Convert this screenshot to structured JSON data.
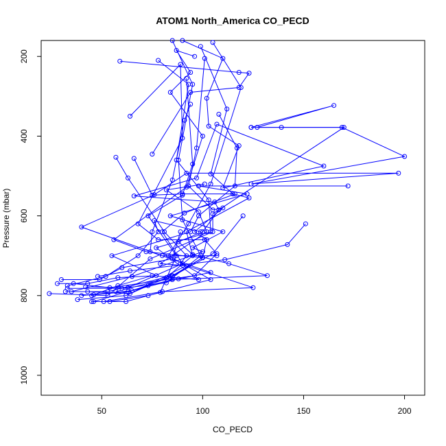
{
  "chart_data": {
    "type": "line",
    "title": "ATOM1 North_America CO_PECD",
    "xlabel": "CO_PECD",
    "ylabel": "Pressure (mbar)",
    "xlim": [
      20,
      210
    ],
    "ylim": [
      1050,
      160
    ],
    "y_inverted": true,
    "x_ticks": [
      50,
      100,
      150,
      200
    ],
    "y_ticks": [
      200,
      400,
      600,
      800,
      1000
    ],
    "grid": false,
    "legend": "none",
    "marker": "open-circle",
    "color": "#0000ff",
    "series": [
      {
        "points": [
          [
            59,
            212
          ],
          [
            118,
            240
          ],
          [
            123,
            242
          ],
          [
            118,
            278
          ],
          [
            94,
            290
          ],
          [
            75,
            445
          ]
        ]
      },
      {
        "points": [
          [
            124,
            378
          ],
          [
            165,
            323
          ],
          [
            127,
            378
          ],
          [
            169,
            378
          ],
          [
            200,
            451
          ],
          [
            124,
            520
          ],
          [
            197,
            493
          ],
          [
            92,
            493
          ],
          [
            76,
            547
          ],
          [
            40,
            628
          ],
          [
            80,
            700
          ],
          [
            107,
            700
          ]
        ]
      },
      {
        "points": [
          [
            90,
            160
          ],
          [
            110,
            205
          ],
          [
            102,
            305
          ],
          [
            103,
            375
          ],
          [
            118,
            424
          ],
          [
            110,
            530
          ],
          [
            160,
            475
          ],
          [
            107,
            370
          ],
          [
            97,
            505
          ],
          [
            66,
            550
          ],
          [
            106,
            565
          ],
          [
            108,
            585
          ],
          [
            100,
            640
          ],
          [
            88,
            665
          ],
          [
            95,
            697
          ],
          [
            113,
            720
          ],
          [
            132,
            750
          ],
          [
            85,
            760
          ],
          [
            73,
            775
          ],
          [
            46,
            815
          ]
        ]
      },
      {
        "points": [
          [
            57,
            453
          ],
          [
            63,
            505
          ],
          [
            81,
            640
          ],
          [
            92,
            700
          ],
          [
            89,
            720
          ],
          [
            125,
            780
          ],
          [
            80,
            790
          ],
          [
            51,
            815
          ]
        ]
      },
      {
        "points": [
          [
            101,
            205
          ],
          [
            97,
            430
          ],
          [
            93,
            525
          ],
          [
            105,
            585
          ],
          [
            110,
            580
          ],
          [
            96,
            640
          ],
          [
            102,
            660
          ],
          [
            100,
            705
          ],
          [
            85,
            750
          ],
          [
            53,
            790
          ],
          [
            32,
            790
          ]
        ]
      },
      {
        "points": [
          [
            124,
            378
          ],
          [
            139,
            378
          ],
          [
            170,
            378
          ],
          [
            105,
            595
          ],
          [
            105,
            640
          ],
          [
            74,
            708
          ],
          [
            53,
            800
          ],
          [
            24,
            795
          ]
        ]
      },
      {
        "points": [
          [
            99,
            175
          ],
          [
            112,
            332
          ],
          [
            104,
            495
          ],
          [
            115,
            545
          ],
          [
            123,
            555
          ],
          [
            92,
            640
          ],
          [
            95,
            700
          ],
          [
            82,
            755
          ],
          [
            62,
            800
          ],
          [
            38,
            810
          ]
        ]
      },
      {
        "points": [
          [
            151,
            620
          ],
          [
            142,
            672
          ],
          [
            111,
            710
          ],
          [
            64,
            738
          ],
          [
            48,
            752
          ]
        ]
      },
      {
        "points": [
          [
            96,
            200
          ],
          [
            87,
            185
          ],
          [
            94,
            240
          ],
          [
            84,
            290
          ],
          [
            100,
            400
          ],
          [
            92,
            528
          ],
          [
            56,
            660
          ],
          [
            72,
            690
          ],
          [
            100,
            705
          ],
          [
            84,
            755
          ],
          [
            57,
            790
          ]
        ]
      },
      {
        "points": [
          [
            64,
            350
          ],
          [
            89,
            220
          ],
          [
            90,
            405
          ],
          [
            68,
            620
          ],
          [
            78,
            660
          ],
          [
            101,
            660
          ],
          [
            107,
            695
          ],
          [
            96,
            750
          ],
          [
            54,
            780
          ],
          [
            36,
            770
          ]
        ]
      },
      {
        "points": [
          [
            172,
            525
          ],
          [
            98,
            525
          ],
          [
            122,
            545
          ],
          [
            84,
            600
          ],
          [
            110,
            640
          ],
          [
            95,
            680
          ],
          [
            100,
            690
          ],
          [
            65,
            752
          ],
          [
            35,
            790
          ]
        ]
      },
      {
        "points": [
          [
            108,
            345
          ],
          [
            117,
            430
          ],
          [
            116,
            525
          ],
          [
            98,
            600
          ],
          [
            94,
            640
          ],
          [
            55,
            700
          ],
          [
            77,
            750
          ],
          [
            58,
            755
          ],
          [
            43,
            770
          ],
          [
            28,
            770
          ]
        ]
      },
      {
        "points": [
          [
            78,
            210
          ],
          [
            93,
            270
          ],
          [
            87,
            460
          ],
          [
            103,
            560
          ],
          [
            104,
            640
          ],
          [
            77,
            680
          ],
          [
            98,
            760
          ],
          [
            75,
            750
          ],
          [
            58,
            775
          ],
          [
            45,
            800
          ]
        ]
      },
      {
        "points": [
          [
            85,
            160
          ],
          [
            95,
            270
          ],
          [
            88,
            460
          ],
          [
            90,
            610
          ],
          [
            99,
            700
          ],
          [
            82,
            768
          ],
          [
            60,
            782
          ],
          [
            33,
            782
          ]
        ]
      },
      {
        "points": [
          [
            94,
            320
          ],
          [
            91,
            360
          ],
          [
            85,
            510
          ],
          [
            75,
            640
          ],
          [
            74,
            690
          ],
          [
            104,
            742
          ],
          [
            88,
            758
          ],
          [
            63,
            790
          ],
          [
            46,
            798
          ]
        ]
      },
      {
        "points": [
          [
            120,
            600
          ],
          [
            105,
            695
          ],
          [
            85,
            752
          ],
          [
            65,
            788
          ],
          [
            40,
            800
          ]
        ]
      },
      {
        "points": [
          [
            92,
            255
          ],
          [
            95,
            470
          ],
          [
            90,
            548
          ],
          [
            73,
            600
          ],
          [
            87,
            700
          ],
          [
            79,
            792
          ],
          [
            62,
            815
          ],
          [
            45,
            815
          ]
        ]
      },
      {
        "points": [
          [
            66,
            456
          ],
          [
            75,
            548
          ],
          [
            90,
            545
          ],
          [
            116,
            545
          ],
          [
            91,
            593
          ],
          [
            80,
            640
          ],
          [
            90,
            720
          ],
          [
            63,
            780
          ],
          [
            42,
            778
          ]
        ]
      },
      {
        "points": [
          [
            105,
            165
          ],
          [
            119,
            278
          ],
          [
            104,
            520
          ],
          [
            93,
            620
          ],
          [
            83,
            700
          ],
          [
            104,
            760
          ],
          [
            73,
            800
          ],
          [
            54,
            815
          ]
        ]
      },
      {
        "points": [
          [
            99,
            640
          ],
          [
            76,
            612
          ],
          [
            78,
            640
          ],
          [
            68,
            700
          ],
          [
            52,
            752
          ],
          [
            33,
            775
          ]
        ]
      },
      {
        "points": [
          [
            89,
            640
          ],
          [
            85,
            708
          ],
          [
            60,
            730
          ],
          [
            49,
            760
          ],
          [
            30,
            760
          ]
        ]
      },
      {
        "points": [
          [
            101,
            520
          ],
          [
            82,
            535
          ],
          [
            98,
            590
          ],
          [
            102,
            640
          ],
          [
            79,
            720
          ],
          [
            92,
            725
          ],
          [
            64,
            795
          ],
          [
            43,
            790
          ]
        ]
      }
    ]
  }
}
